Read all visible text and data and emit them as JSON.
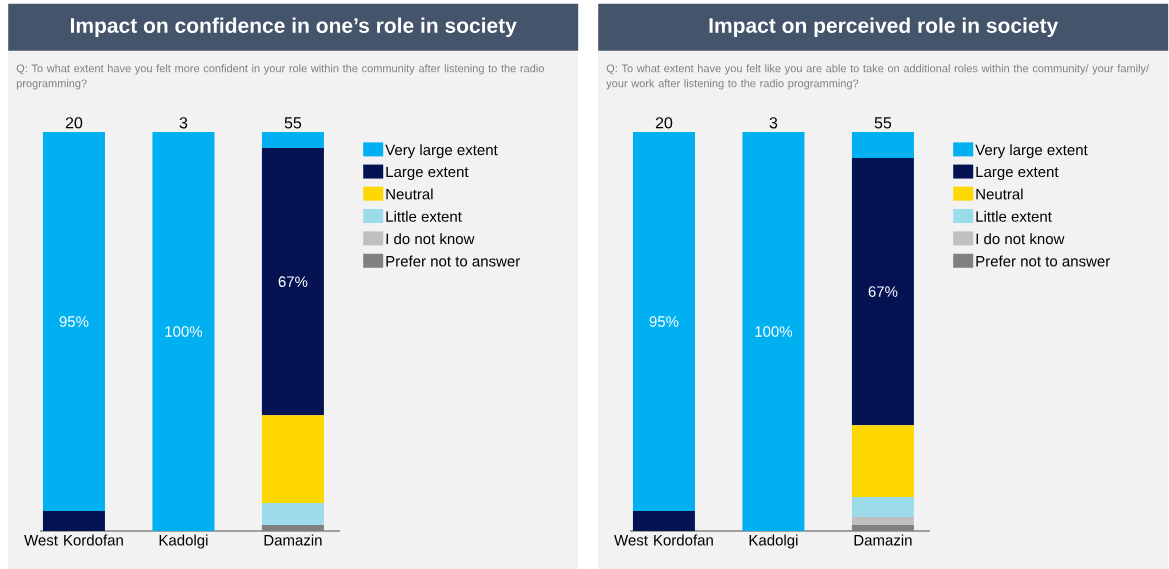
{
  "chart_data": [
    {
      "type": "bar",
      "stacked": true,
      "title": "Impact on confidence in one’s role in society",
      "subtitle": "Q: To what extent have you felt more confident in your role within the community after listening to the radio programming?",
      "categories": [
        "West Kordofan",
        "Kadolgi",
        "Damazin"
      ],
      "ylim": [
        0,
        100
      ],
      "tick_labels": "x",
      "legend": "right",
      "annotations": [
        "20",
        "3",
        "55"
      ],
      "series": [
        {
          "name": "Prefer not to answer",
          "color": "#808080",
          "values": [
            0,
            0,
            1.5
          ]
        },
        {
          "name": "I do not know",
          "color": "#bfbfbf",
          "values": [
            0,
            0,
            0
          ]
        },
        {
          "name": "Little extent",
          "color": "#9cdcea",
          "values": [
            0,
            0,
            5.5
          ]
        },
        {
          "name": "Neutral",
          "color": "#ffd700",
          "values": [
            0,
            0,
            22
          ]
        },
        {
          "name": "Large extent",
          "color": "#061353",
          "values": [
            5,
            0,
            67
          ],
          "value_labels": [
            null,
            null,
            "67%"
          ]
        },
        {
          "name": "Very large extent",
          "color": "#00b0f0",
          "values": [
            95,
            100,
            4
          ],
          "value_labels": [
            "95%",
            "100%",
            null
          ]
        }
      ]
    },
    {
      "type": "bar",
      "stacked": true,
      "title": "Impact on perceived role in society",
      "subtitle": "Q: To what extent have you felt like you are able to take on additional roles within the community/ your family/ your work after listening to the radio programming?",
      "categories": [
        "West Kordofan",
        "Kadolgi",
        "Damazin"
      ],
      "ylim": [
        0,
        100
      ],
      "tick_labels": "x",
      "legend": "right",
      "annotations": [
        "20",
        "3",
        "55"
      ],
      "series": [
        {
          "name": "Prefer not to answer",
          "color": "#808080",
          "values": [
            0,
            0,
            1.5
          ]
        },
        {
          "name": "I do not know",
          "color": "#bfbfbf",
          "values": [
            0,
            0,
            2
          ]
        },
        {
          "name": "Little extent",
          "color": "#9cdcea",
          "values": [
            0,
            0,
            5
          ]
        },
        {
          "name": "Neutral",
          "color": "#ffd700",
          "values": [
            0,
            0,
            18
          ]
        },
        {
          "name": "Large extent",
          "color": "#061353",
          "values": [
            5,
            0,
            67
          ],
          "value_labels": [
            null,
            null,
            "67%"
          ]
        },
        {
          "name": "Very large extent",
          "color": "#00b0f0",
          "values": [
            95,
            100,
            6.5
          ],
          "value_labels": [
            "95%",
            "100%",
            null
          ]
        }
      ]
    }
  ]
}
